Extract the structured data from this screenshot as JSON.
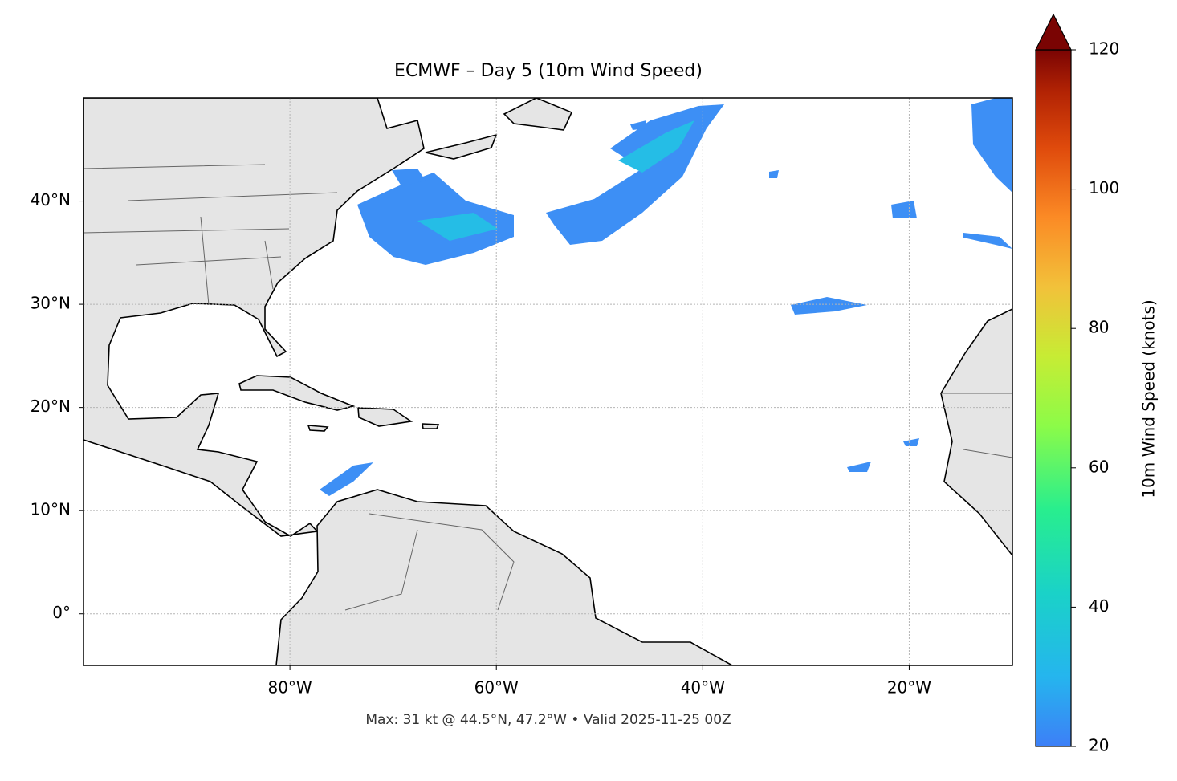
{
  "chart_data": {
    "type": "map",
    "title": "ECMWF – Day 5 (10m Wind Speed)",
    "footnote": "Max: 31 kt @ 44.5°N, 47.2°W • Valid 2025-11-25 00Z",
    "xlim": [
      -100,
      -10
    ],
    "ylim": [
      -5,
      50
    ],
    "xticks": [
      {
        "value": -80,
        "label": "80°W"
      },
      {
        "value": -60,
        "label": "60°W"
      },
      {
        "value": -40,
        "label": "40°W"
      },
      {
        "value": -20,
        "label": "20°W"
      }
    ],
    "yticks": [
      {
        "value": 0,
        "label": "0°"
      },
      {
        "value": 10,
        "label": "10°N"
      },
      {
        "value": 20,
        "label": "20°N"
      },
      {
        "value": 30,
        "label": "30°N"
      },
      {
        "value": 40,
        "label": "40°N"
      }
    ],
    "grid": true,
    "colorbar": {
      "label": "10m Wind Speed (knots)",
      "lim": [
        20,
        120
      ],
      "ticks": [
        20,
        40,
        60,
        80,
        100,
        120
      ]
    }
  }
}
